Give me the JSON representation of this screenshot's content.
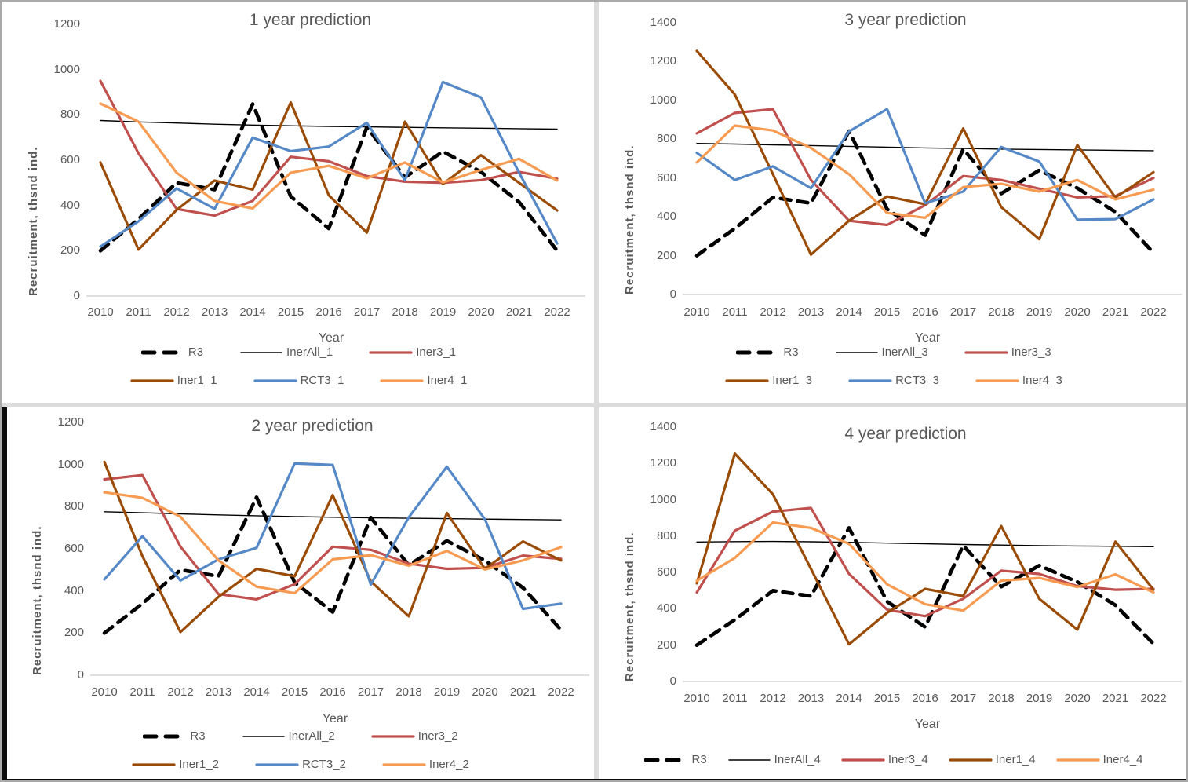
{
  "page": {
    "background": "#ffffff",
    "border_color": "#a9a9a9",
    "divider_color": "#dcdcdc",
    "accent_text_color": "#595959"
  },
  "charts": [
    {
      "id": "chart-1year",
      "title": "1 year prediction",
      "position": "top-left",
      "chart_data": {
        "type": "line",
        "x": [
          2010,
          2011,
          2012,
          2013,
          2014,
          2015,
          2016,
          2017,
          2018,
          2019,
          2020,
          2021,
          2022
        ],
        "xlabel": "Year",
        "ylabel": "Recruitment, thsnd ind.",
        "ylim": [
          0,
          1200
        ],
        "ytick_step": 200,
        "grid": false,
        "legend_position": "bottom",
        "legend_rows": 2,
        "series": [
          {
            "name": "R3",
            "color": "#000000",
            "width": 4.6,
            "dash": "13 9",
            "values": [
              200,
              340,
              500,
              470,
              848,
              440,
              298,
              746,
              524,
              638,
              548,
              415,
              200
            ]
          },
          {
            "name": "InerAll_1",
            "color": "#000000",
            "width": 1.4,
            "dash": null,
            "values": [
              775,
              769,
              764,
              759,
              755,
              752,
              749,
              747,
              745,
              743,
              741,
              739,
              737
            ]
          },
          {
            "name": "Iner3_1",
            "color": "#C0504D",
            "width": 3.2,
            "dash": null,
            "values": [
              950,
              630,
              385,
              355,
              420,
              615,
              595,
              530,
              505,
              500,
              512,
              548,
              518
            ]
          },
          {
            "name": "Iner1_1",
            "color": "#9A4B06",
            "width": 3.2,
            "dash": null,
            "values": [
              590,
              205,
              380,
              510,
              470,
              855,
              445,
              280,
              770,
              495,
              622,
              500,
              378
            ]
          },
          {
            "name": "RCT3_1",
            "color": "#5588C7",
            "width": 3.2,
            "dash": null,
            "values": [
              218,
              330,
              475,
              385,
              700,
              640,
              660,
              765,
              512,
              945,
              877,
              545,
              232
            ]
          },
          {
            "name": "Iner4_1",
            "color": "#F79B52",
            "width": 3.2,
            "dash": null,
            "values": [
              850,
              770,
              545,
              420,
              387,
              545,
              575,
              520,
              590,
              502,
              557,
              606,
              510
            ]
          }
        ]
      }
    },
    {
      "id": "chart-3year",
      "title": "3 year prediction",
      "position": "top-right",
      "chart_data": {
        "type": "line",
        "x": [
          2010,
          2011,
          2012,
          2013,
          2014,
          2015,
          2016,
          2017,
          2018,
          2019,
          2020,
          2021,
          2022
        ],
        "xlabel": "Year",
        "ylabel": "Recruitment, thsnd ind.",
        "ylim": [
          0,
          1400
        ],
        "ytick_step": 200,
        "grid": false,
        "legend_position": "bottom",
        "legend_rows": 2,
        "series": [
          {
            "name": "R3",
            "color": "#000000",
            "width": 4.6,
            "dash": "13 9",
            "values": [
              200,
              340,
              500,
              470,
              842,
              440,
              305,
              748,
              520,
              640,
              548,
              425,
              215
            ]
          },
          {
            "name": "InerAll_3",
            "color": "#000000",
            "width": 1.4,
            "dash": null,
            "values": [
              778,
              775,
              771,
              767,
              763,
              759,
              755,
              752,
              749,
              747,
              745,
              743,
              741
            ]
          },
          {
            "name": "Iner3_3",
            "color": "#C0504D",
            "width": 3.2,
            "dash": null,
            "values": [
              830,
              935,
              955,
              590,
              380,
              358,
              460,
              610,
              590,
              545,
              500,
              507,
              600
            ]
          },
          {
            "name": "Iner1_3",
            "color": "#9A4B06",
            "width": 3.2,
            "dash": null,
            "values": [
              1255,
              1030,
              620,
              205,
              380,
              505,
              465,
              855,
              450,
              285,
              770,
              500,
              630
            ]
          },
          {
            "name": "RCT3_3",
            "color": "#5588C7",
            "width": 3.2,
            "dash": null,
            "values": [
              730,
              590,
              660,
              548,
              840,
              955,
              470,
              530,
              760,
              685,
              385,
              388,
              490
            ]
          },
          {
            "name": "Iner4_3",
            "color": "#F79B52",
            "width": 3.2,
            "dash": null,
            "values": [
              680,
              870,
              845,
              755,
              620,
              420,
              395,
              553,
              570,
              530,
              590,
              490,
              540
            ]
          }
        ]
      }
    },
    {
      "id": "chart-2year",
      "title": "2 year prediction",
      "position": "bottom-left",
      "chart_data": {
        "type": "line",
        "x": [
          2010,
          2011,
          2012,
          2013,
          2014,
          2015,
          2016,
          2017,
          2018,
          2019,
          2020,
          2021,
          2022
        ],
        "xlabel": "Year",
        "ylabel": "Recruitment, thsnd ind.",
        "ylim": [
          0,
          1200
        ],
        "ytick_step": 200,
        "grid": false,
        "legend_position": "bottom",
        "legend_rows": 2,
        "series": [
          {
            "name": "R3",
            "color": "#000000",
            "width": 4.6,
            "dash": "13 9",
            "values": [
              200,
              340,
              500,
              470,
              845,
              440,
              300,
              748,
              522,
              638,
              545,
              415,
              215
            ]
          },
          {
            "name": "InerAll_2",
            "color": "#000000",
            "width": 1.4,
            "dash": null,
            "values": [
              776,
              771,
              766,
              761,
              757,
              753,
              750,
              747,
              745,
              743,
              741,
              739,
              737
            ]
          },
          {
            "name": "Iner3_2",
            "color": "#C0504D",
            "width": 3.2,
            "dash": null,
            "values": [
              930,
              950,
              610,
              385,
              360,
              432,
              610,
              595,
              530,
              505,
              510,
              568,
              552
            ]
          },
          {
            "name": "Iner1_2",
            "color": "#9A4B06",
            "width": 3.2,
            "dash": null,
            "values": [
              1012,
              565,
              205,
              372,
              505,
              470,
              855,
              445,
              280,
              770,
              505,
              635,
              545
            ]
          },
          {
            "name": "RCT3_2",
            "color": "#5588C7",
            "width": 3.2,
            "dash": null,
            "values": [
              455,
              660,
              450,
              550,
              605,
              1005,
              998,
              430,
              750,
              990,
              740,
              315,
              340
            ]
          },
          {
            "name": "Iner4_2",
            "color": "#F79B52",
            "width": 3.2,
            "dash": null,
            "values": [
              868,
              842,
              752,
              545,
              420,
              390,
              550,
              570,
              520,
              590,
              502,
              545,
              608
            ]
          }
        ]
      }
    },
    {
      "id": "chart-4year",
      "title": "4 year prediction",
      "position": "bottom-right",
      "chart_data": {
        "type": "line",
        "x": [
          2010,
          2011,
          2012,
          2013,
          2014,
          2015,
          2016,
          2017,
          2018,
          2019,
          2020,
          2021,
          2022
        ],
        "xlabel": "Year",
        "ylabel": "Recruitment, thsnd ind.",
        "ylim": [
          0,
          1400
        ],
        "ytick_step": 200,
        "grid": false,
        "legend_position": "bottom",
        "legend_rows": 1,
        "series": [
          {
            "name": "R3",
            "color": "#000000",
            "width": 4.6,
            "dash": "13 9",
            "values": [
              200,
              340,
              500,
              470,
              845,
              440,
              300,
              748,
              522,
              638,
              548,
              420,
              208
            ]
          },
          {
            "name": "InerAll_4",
            "color": "#000000",
            "width": 1.4,
            "dash": null,
            "values": [
              768,
              770,
              771,
              769,
              766,
              762,
              758,
              754,
              751,
              748,
              746,
              744,
              742
            ]
          },
          {
            "name": "Iner3_4",
            "color": "#C0504D",
            "width": 3.2,
            "dash": null,
            "values": [
              490,
              830,
              935,
              955,
              593,
              395,
              360,
              455,
              610,
              592,
              525,
              505,
              510
            ]
          },
          {
            "name": "Iner1_4",
            "color": "#9A4B06",
            "width": 3.2,
            "dash": null,
            "values": [
              540,
              1255,
              1030,
              620,
              205,
              378,
              510,
              470,
              855,
              455,
              285,
              770,
              505
            ]
          },
          {
            "name": "Iner4_4",
            "color": "#F79B52",
            "width": 3.2,
            "dash": null,
            "values": [
              555,
              680,
              875,
              845,
              758,
              535,
              425,
              390,
              555,
              570,
              520,
              590,
              490
            ]
          }
        ]
      }
    }
  ]
}
